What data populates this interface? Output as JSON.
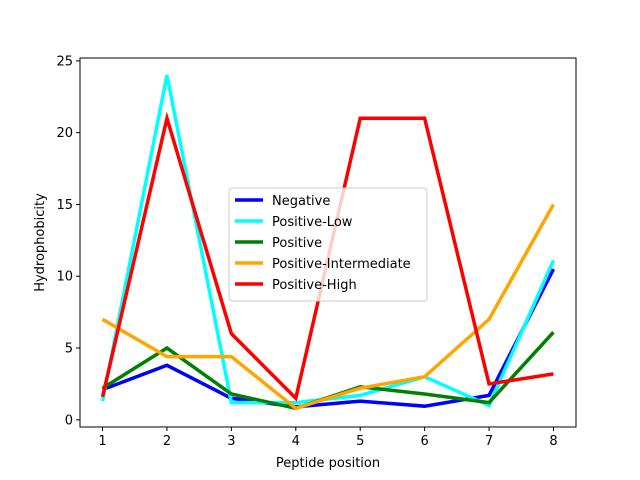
{
  "chart_data": {
    "type": "line",
    "title": "",
    "xlabel": "Peptide position",
    "ylabel": "Hydrophobicity",
    "x": [
      1,
      2,
      3,
      4,
      5,
      6,
      7,
      8
    ],
    "xticks": [
      1,
      2,
      3,
      4,
      5,
      6,
      7,
      8
    ],
    "yticks": [
      0,
      5,
      10,
      15,
      20,
      25
    ],
    "xlim": [
      0.65,
      8.35
    ],
    "ylim": [
      -0.5,
      25.2
    ],
    "grid": false,
    "legend_position": "center",
    "series": [
      {
        "name": "Negative",
        "color": "#0000ff",
        "values": [
          2.1,
          3.8,
          1.5,
          0.9,
          1.3,
          0.95,
          1.7,
          10.5
        ]
      },
      {
        "name": "Positive-Low",
        "color": "#00ffff",
        "values": [
          1.3,
          24.0,
          1.2,
          1.2,
          1.7,
          3.0,
          1.0,
          11.1
        ]
      },
      {
        "name": "Positive",
        "color": "#008000",
        "values": [
          2.2,
          5.0,
          1.8,
          0.8,
          2.3,
          1.8,
          1.2,
          6.1
        ]
      },
      {
        "name": "Positive-Intermediate",
        "color": "#ffa500",
        "values": [
          7.0,
          4.4,
          4.4,
          0.8,
          2.2,
          3.0,
          7.0,
          15.0
        ]
      },
      {
        "name": "Positive-High",
        "color": "#ff0000",
        "values": [
          1.6,
          21.0,
          6.0,
          1.5,
          21.0,
          21.0,
          2.5,
          3.2
        ]
      }
    ]
  }
}
